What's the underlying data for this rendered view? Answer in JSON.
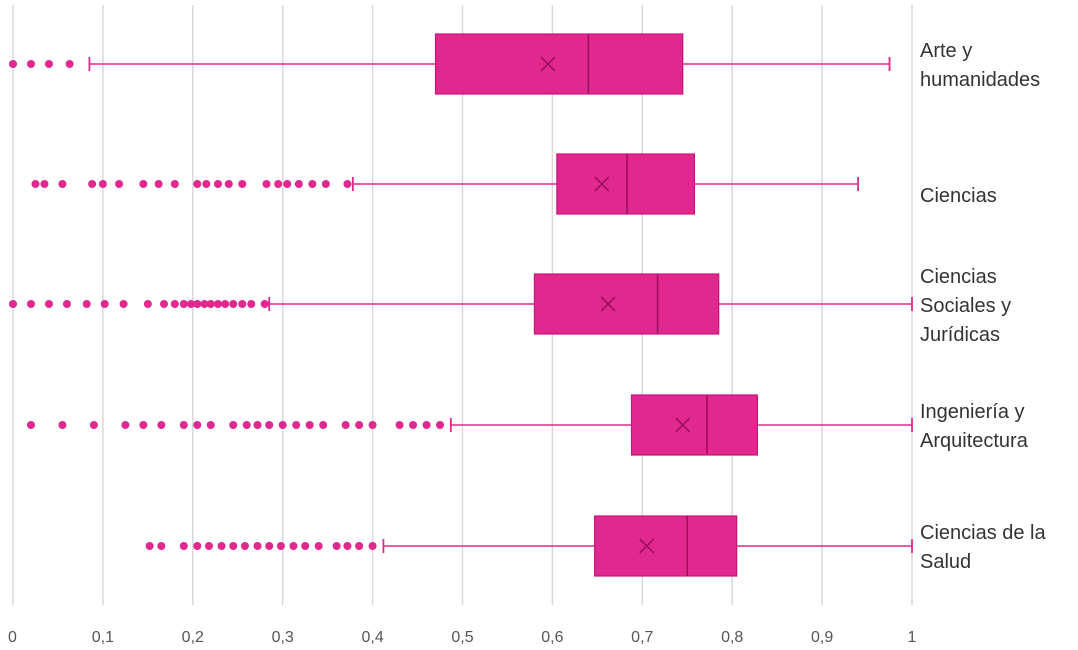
{
  "chart_data": {
    "type": "box",
    "title": "",
    "xlabel": "",
    "ylabel": "",
    "xlim": [
      0,
      1
    ],
    "grid": "vertical",
    "tick_labels": [
      "0",
      "0,1",
      "0,2",
      "0,3",
      "0,4",
      "0,5",
      "0,6",
      "0,7",
      "0,8",
      "0,9",
      "1"
    ],
    "tick_values": [
      0,
      0.1,
      0.2,
      0.3,
      0.4,
      0.5,
      0.6,
      0.7,
      0.8,
      0.9,
      1.0
    ],
    "color": "#e0288f",
    "categories": [
      "Arte y humanidades",
      "Ciencias",
      "Ciencias Sociales y Jurídicas",
      "Ingeniería y Arquitectura",
      "Ciencias de la Salud"
    ],
    "boxes": [
      {
        "category": "Arte y humanidades",
        "whisker_low": 0.085,
        "q1": 0.47,
        "median": 0.64,
        "mean": 0.595,
        "q3": 0.745,
        "whisker_high": 0.975,
        "outliers": [
          0.0,
          0.02,
          0.04,
          0.063
        ]
      },
      {
        "category": "Ciencias",
        "whisker_low": 0.378,
        "q1": 0.605,
        "median": 0.683,
        "mean": 0.655,
        "q3": 0.758,
        "whisker_high": 0.94,
        "outliers": [
          0.025,
          0.035,
          0.055,
          0.088,
          0.1,
          0.118,
          0.145,
          0.162,
          0.18,
          0.205,
          0.215,
          0.228,
          0.24,
          0.255,
          0.282,
          0.295,
          0.305,
          0.318,
          0.333,
          0.348,
          0.372
        ]
      },
      {
        "category": "Ciencias Sociales y Jurídicas",
        "whisker_low": 0.285,
        "q1": 0.58,
        "median": 0.717,
        "mean": 0.662,
        "q3": 0.785,
        "whisker_high": 1.0,
        "outliers": [
          0.0,
          0.02,
          0.04,
          0.06,
          0.082,
          0.102,
          0.123,
          0.15,
          0.168,
          0.18,
          0.19,
          0.198,
          0.205,
          0.213,
          0.22,
          0.228,
          0.236,
          0.245,
          0.255,
          0.265,
          0.28
        ]
      },
      {
        "category": "Ingeniería y Arquitectura",
        "whisker_low": 0.487,
        "q1": 0.688,
        "median": 0.772,
        "mean": 0.745,
        "q3": 0.828,
        "whisker_high": 1.0,
        "outliers": [
          0.02,
          0.055,
          0.09,
          0.125,
          0.145,
          0.165,
          0.19,
          0.205,
          0.22,
          0.245,
          0.26,
          0.272,
          0.285,
          0.3,
          0.315,
          0.33,
          0.345,
          0.37,
          0.385,
          0.4,
          0.43,
          0.445,
          0.46,
          0.475
        ]
      },
      {
        "category": "Ciencias de la Salud",
        "whisker_low": 0.412,
        "q1": 0.647,
        "median": 0.75,
        "mean": 0.705,
        "q3": 0.805,
        "whisker_high": 1.0,
        "outliers": [
          0.152,
          0.165,
          0.19,
          0.205,
          0.218,
          0.232,
          0.245,
          0.258,
          0.272,
          0.285,
          0.298,
          0.312,
          0.325,
          0.34,
          0.36,
          0.372,
          0.385,
          0.4
        ]
      }
    ],
    "category_labels": [
      [
        "Arte y",
        "humanidades"
      ],
      [
        "Ciencias"
      ],
      [
        "Ciencias",
        "Sociales y",
        "Jurídicas"
      ],
      [
        "Ingeniería y",
        "Arquitectura"
      ],
      [
        "Ciencias de la",
        "Salud"
      ]
    ]
  }
}
